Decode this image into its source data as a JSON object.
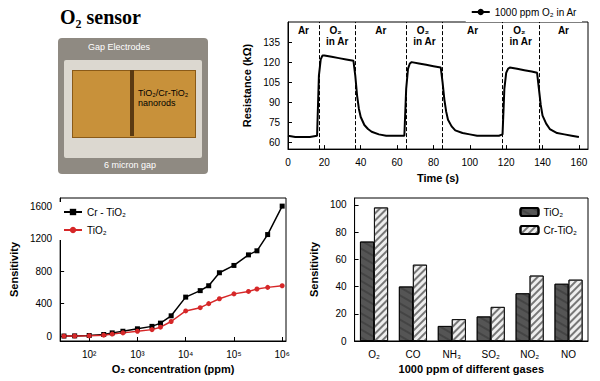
{
  "header": {
    "title": "O₂ sensor"
  },
  "photo": {
    "labels": [
      "Gap Electrodes",
      "TiO₂/Cr-TiO₂ nanorods",
      "6 micron gap"
    ]
  },
  "chart_data": [
    {
      "type": "line",
      "xlabel": "Time (s)",
      "ylabel": "Resistance (kΩ)",
      "x": [
        0,
        4,
        8,
        12,
        16,
        17,
        18,
        19,
        20,
        24,
        28,
        32,
        36,
        37,
        38,
        39,
        40,
        42,
        44,
        46,
        50,
        54,
        58,
        62,
        64,
        65,
        66,
        67,
        68,
        72,
        76,
        80,
        84,
        85,
        86,
        87,
        88,
        90,
        92,
        96,
        100,
        104,
        108,
        112,
        116,
        118,
        119,
        120,
        121,
        122,
        126,
        130,
        134,
        137,
        138,
        139,
        140,
        142,
        144,
        148,
        152,
        156,
        160
      ],
      "series": [
        {
          "name": "1000 ppm O₂ in Ar",
          "color": "#000000",
          "marker": "none",
          "values": [
            65,
            64,
            64,
            64,
            65,
            110,
            122,
            125,
            125,
            124,
            123,
            122,
            121,
            110,
            95,
            85,
            79,
            73,
            70,
            68,
            66,
            65,
            65,
            65,
            65,
            100,
            115,
            119,
            120,
            119,
            118,
            117,
            116,
            105,
            92,
            83,
            77,
            72,
            69,
            67,
            66,
            65,
            65,
            65,
            65,
            66,
            100,
            112,
            115,
            116,
            115,
            114,
            113,
            112,
            100,
            88,
            80,
            74,
            70,
            67,
            66,
            65,
            64
          ]
        }
      ],
      "regions": [
        {
          "label": "Ar",
          "start": 0,
          "end": 17
        },
        {
          "label": "O₂ in Ar",
          "start": 17,
          "end": 37
        },
        {
          "label": "Ar",
          "start": 37,
          "end": 65
        },
        {
          "label": "O₂ in Ar",
          "start": 65,
          "end": 85
        },
        {
          "label": "Ar",
          "start": 85,
          "end": 118
        },
        {
          "label": "O₂ in Ar",
          "start": 118,
          "end": 138
        },
        {
          "label": "Ar",
          "start": 138,
          "end": 165
        }
      ],
      "xlim": [
        0,
        165
      ],
      "xticks": [
        0,
        20,
        40,
        60,
        80,
        100,
        120,
        140,
        160
      ],
      "ylim": [
        55,
        150
      ],
      "yticks": [
        60,
        75,
        90,
        105,
        120,
        135
      ],
      "grid": false,
      "legend": "upper right"
    },
    {
      "type": "line",
      "xlabel": "O₂ concentration (ppm)",
      "ylabel": "Sensitivity",
      "log": "x",
      "x": [
        30,
        50,
        100,
        200,
        300,
        500,
        1000,
        2000,
        3000,
        5000,
        10000,
        20000,
        30000,
        50000,
        100000,
        200000,
        300000,
        500000,
        1000000
      ],
      "series": [
        {
          "name": "Cr - TiO₂",
          "color": "#000000",
          "marker": "square",
          "values": [
            1,
            3,
            8,
            20,
            40,
            60,
            90,
            120,
            160,
            250,
            480,
            560,
            620,
            780,
            870,
            1000,
            1050,
            1250,
            1600
          ]
        },
        {
          "name": "TiO₂",
          "color": "#d62728",
          "marker": "circle",
          "values": [
            1,
            2,
            5,
            12,
            25,
            40,
            60,
            80,
            110,
            180,
            310,
            350,
            400,
            460,
            520,
            550,
            580,
            600,
            620
          ]
        }
      ],
      "xlim": [
        25,
        1200000
      ],
      "xticks": [
        {
          "value": 100,
          "label": "10²"
        },
        {
          "value": 1000,
          "label": "10³"
        },
        {
          "value": 10000,
          "label": "10⁴"
        },
        {
          "value": 100000,
          "label": "10⁵"
        },
        {
          "value": 1000000,
          "label": "10⁶"
        }
      ],
      "ylim": [
        -60,
        1700
      ],
      "yticks": [
        0,
        400,
        800,
        1200,
        1600
      ],
      "grid": false,
      "legend": "upper left"
    },
    {
      "type": "bar",
      "xlabel": "1000 ppm of different gases",
      "ylabel": "Sensitivity",
      "categories": [
        "O₂",
        "CO",
        "NH₃",
        "SO₂",
        "NO₂",
        "NO"
      ],
      "series": [
        {
          "name": "TiO₂",
          "color": "#555555",
          "values": [
            73,
            40,
            11,
            18,
            35,
            42
          ]
        },
        {
          "name": "Cr-TiO₂",
          "color": "#eeeeee",
          "values": [
            98,
            56,
            16,
            25,
            48,
            45
          ]
        }
      ],
      "ylim": [
        0,
        105
      ],
      "yticks": [
        0,
        20,
        40,
        60,
        80,
        100
      ],
      "grid": false,
      "legend": "upper right"
    }
  ]
}
